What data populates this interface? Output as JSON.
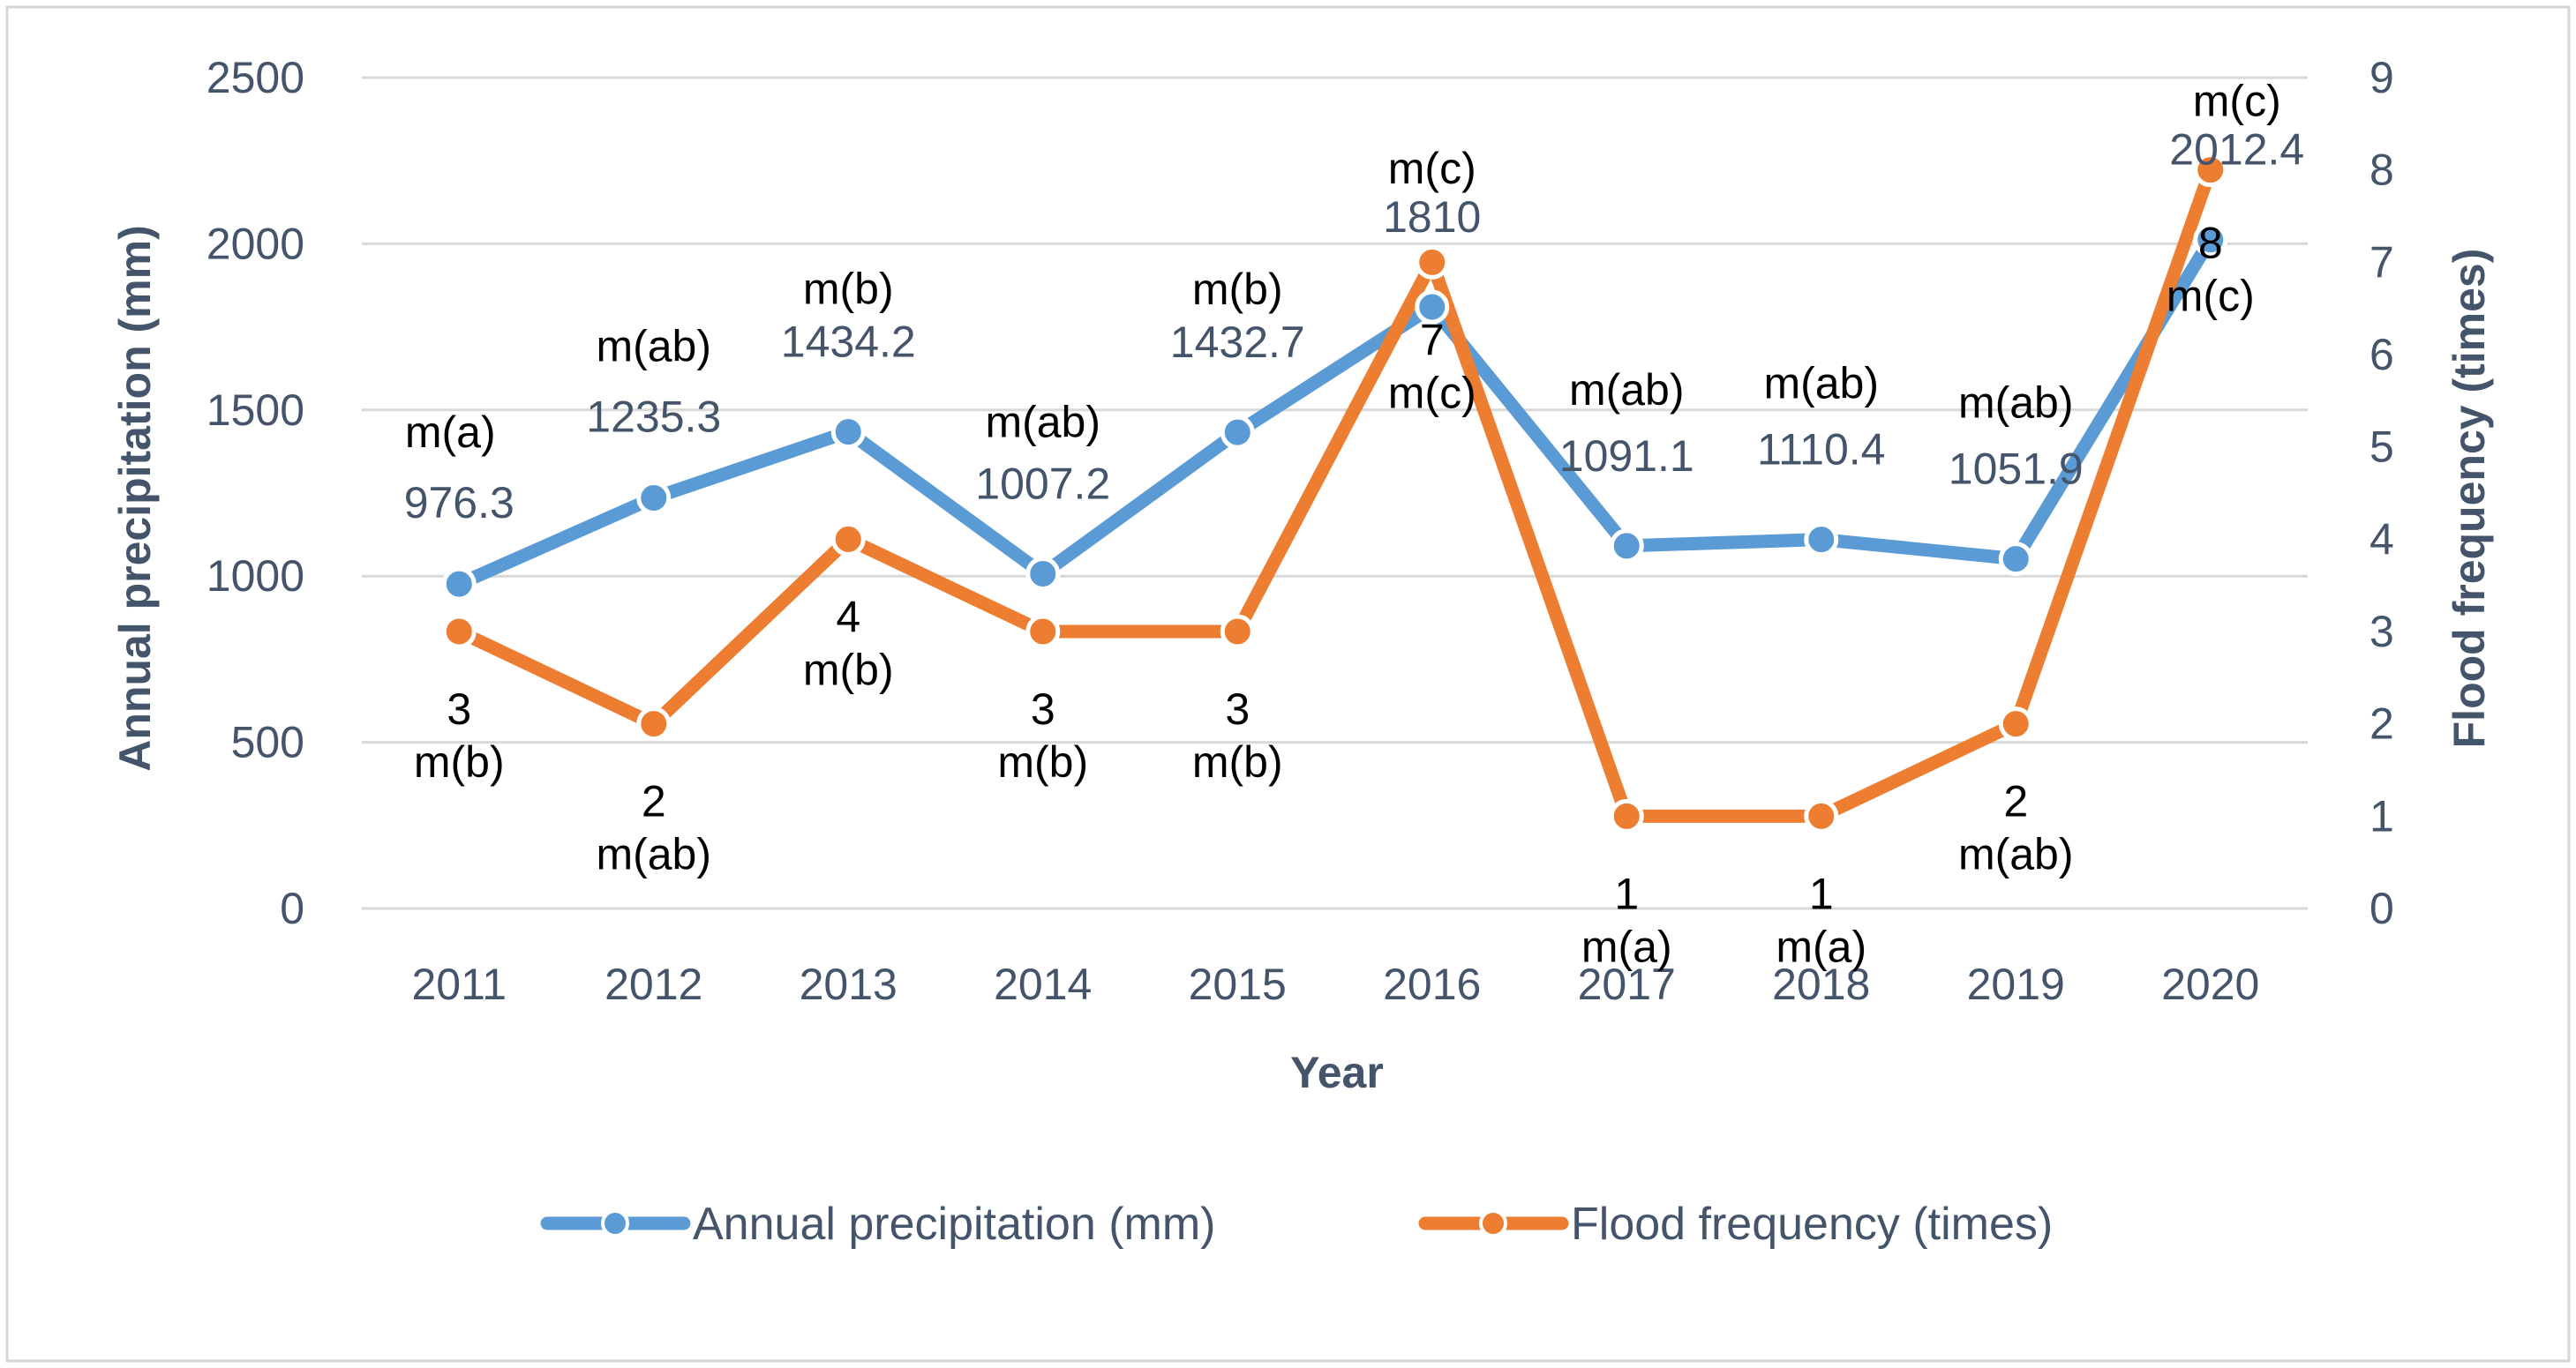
{
  "chart_data": {
    "type": "line",
    "title": "",
    "xlabel": "Year",
    "ylabel_left": "Annual precipitation (mm)",
    "ylabel_right": "Flood frequency (times)",
    "categories": [
      "2011",
      "2012",
      "2013",
      "2014",
      "2015",
      "2016",
      "2017",
      "2018",
      "2019",
      "2020"
    ],
    "y_left": {
      "range": [
        0,
        2500
      ],
      "ticks": [
        "0",
        "500",
        "1000",
        "1500",
        "2000",
        "2500"
      ]
    },
    "y_right": {
      "range": [
        0,
        9
      ],
      "ticks": [
        "0",
        "1",
        "2",
        "3",
        "4",
        "5",
        "6",
        "7",
        "8",
        "9"
      ]
    },
    "grid": true,
    "legend_position": "bottom",
    "series": [
      {
        "name": "Annual precipitation (mm)",
        "axis": "left",
        "color": "#5b9bd5",
        "values": [
          976.3,
          1235.3,
          1434.2,
          1007.2,
          1432.7,
          1810,
          1091.1,
          1110.4,
          1051.9,
          2012.4
        ],
        "value_labels": [
          "976.3",
          "1235.3",
          "1434.2",
          "1007.2",
          "1432.7",
          "1810",
          "1091.1",
          "1110.4",
          "1051.9",
          "2012.4"
        ],
        "group_labels": [
          "m(a)",
          "m(ab)",
          "m(b)",
          "m(ab)",
          "m(b)",
          "m(c)",
          "m(ab)",
          "m(ab)",
          "m(ab)",
          "m(c)"
        ]
      },
      {
        "name": "Flood frequency (times)",
        "axis": "right",
        "color": "#ed7d31",
        "values": [
          3,
          2,
          4,
          3,
          3,
          7,
          1,
          1,
          2,
          8
        ],
        "value_labels": [
          "3",
          "2",
          "4",
          "3",
          "3",
          "7",
          "1",
          "1",
          "2",
          "8"
        ],
        "group_labels": [
          "m(b)",
          "m(ab)",
          "m(b)",
          "m(b)",
          "m(b)",
          "m(c)",
          "m(a)",
          "m(a)",
          "m(ab)",
          "m(c)"
        ]
      }
    ]
  }
}
